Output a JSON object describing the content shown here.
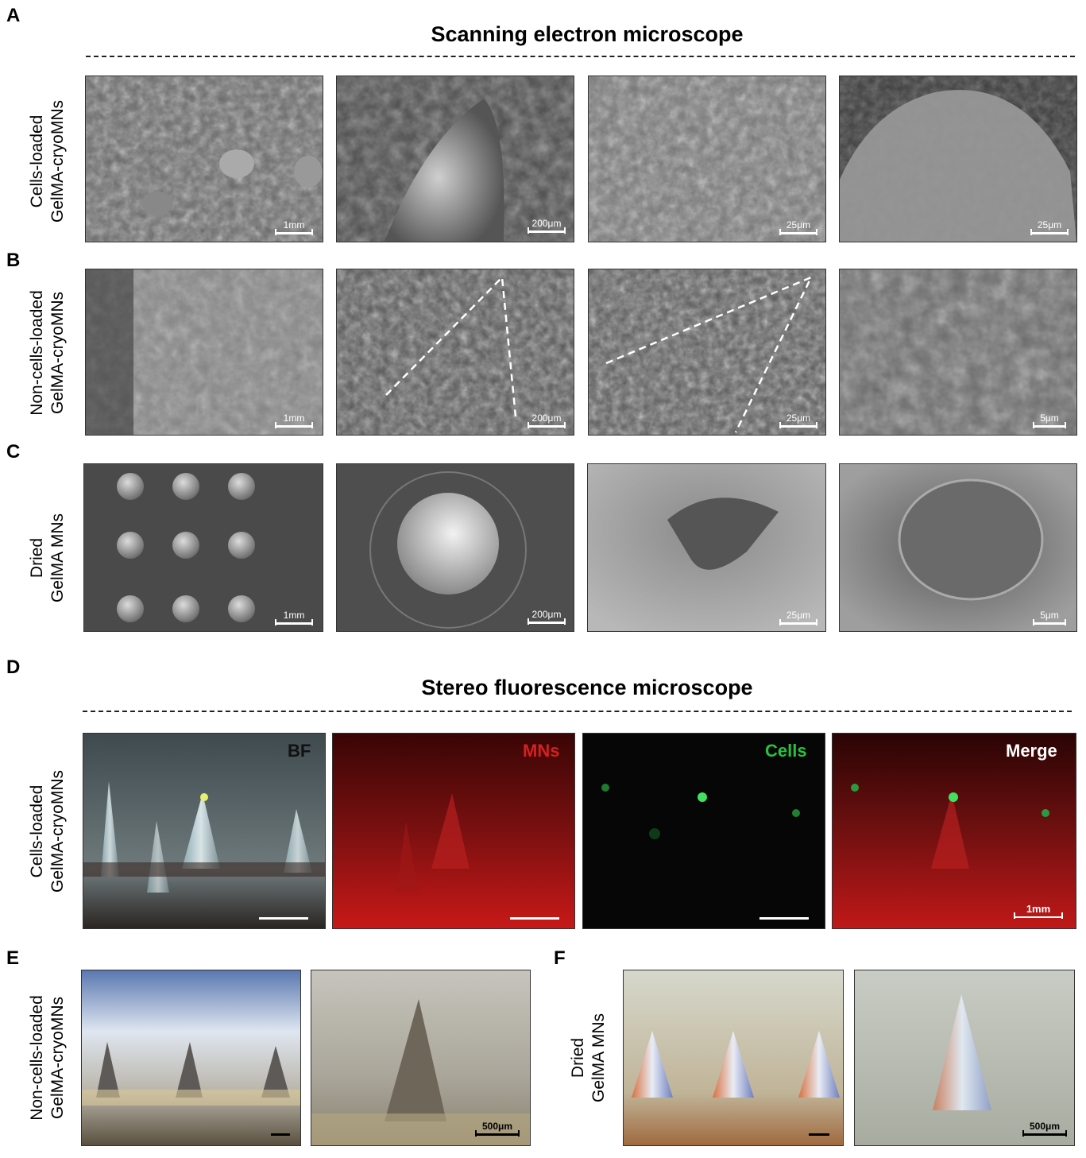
{
  "panels": {
    "A": "A",
    "B": "B",
    "C": "C",
    "D": "D",
    "E": "E",
    "F": "F"
  },
  "titles": {
    "sem": "Scanning electron microscope",
    "stereo": "Stereo fluorescence microscope"
  },
  "row_labels": {
    "a": [
      "Cells-loaded",
      "GelMA-cryoMNs"
    ],
    "b": [
      "Non-cells-loaded",
      "GelMA-cryoMNs"
    ],
    "c": [
      "Dried",
      "GelMA MNs"
    ],
    "d": [
      "Cells-loaded",
      "GelMA-cryoMNs"
    ],
    "e": [
      "Non-cells-loaded",
      "GelMA-cryoMNs"
    ],
    "f": [
      "Dried",
      "GelMA MNs"
    ]
  },
  "scale_bars": {
    "a": [
      "1mm",
      "200μm",
      "25μm",
      "25μm"
    ],
    "b": [
      "1mm",
      "200μm",
      "25μm",
      "5μm"
    ],
    "c": [
      "1mm",
      "200μm",
      "25μm",
      "5μm"
    ],
    "d4": "1mm",
    "e2": "500μm",
    "f2": "500μm"
  },
  "channels": {
    "bf": "BF",
    "mns": "MNs",
    "cells": "Cells",
    "merge": "Merge",
    "colors": {
      "bf": "#111111",
      "mns": "#d42020",
      "cells": "#29c040",
      "merge": "#ffffff"
    }
  }
}
